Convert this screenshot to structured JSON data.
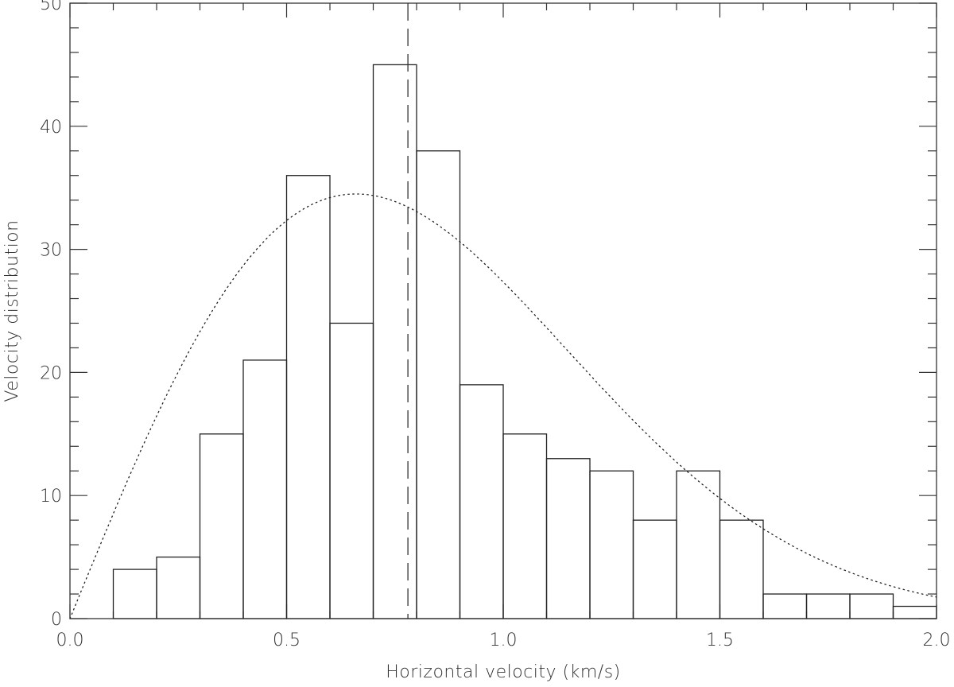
{
  "chart_data": {
    "type": "histogram",
    "xlabel": "Horizontal velocity (km/s)",
    "ylabel": "Velocity distribution",
    "xlim": [
      0.0,
      2.0
    ],
    "ylim": [
      0,
      50
    ],
    "x_ticks": [
      0.0,
      0.5,
      1.0,
      1.5,
      2.0
    ],
    "x_tick_labels": [
      "0.0",
      "0.5",
      "1.0",
      "1.5",
      "2.0"
    ],
    "y_ticks": [
      0,
      10,
      20,
      30,
      40,
      50
    ],
    "y_tick_labels": [
      "0",
      "10",
      "20",
      "30",
      "40",
      "50"
    ],
    "x_minor_step": 0.1,
    "y_minor_step": 2,
    "grid": false,
    "bin_width": 0.1,
    "bins": [
      {
        "x0": 0.1,
        "value": 4
      },
      {
        "x0": 0.2,
        "value": 5
      },
      {
        "x0": 0.3,
        "value": 15
      },
      {
        "x0": 0.4,
        "value": 21
      },
      {
        "x0": 0.5,
        "value": 36
      },
      {
        "x0": 0.6,
        "value": 24
      },
      {
        "x0": 0.7,
        "value": 45
      },
      {
        "x0": 0.8,
        "value": 38
      },
      {
        "x0": 0.9,
        "value": 19
      },
      {
        "x0": 1.0,
        "value": 15
      },
      {
        "x0": 1.1,
        "value": 13
      },
      {
        "x0": 1.2,
        "value": 12
      },
      {
        "x0": 1.3,
        "value": 8
      },
      {
        "x0": 1.4,
        "value": 12
      },
      {
        "x0": 1.5,
        "value": 8
      },
      {
        "x0": 1.6,
        "value": 2
      },
      {
        "x0": 1.7,
        "value": 2
      },
      {
        "x0": 1.8,
        "value": 2
      },
      {
        "x0": 1.9,
        "value": 1
      }
    ],
    "fit_curve": {
      "style": "dotted",
      "peak_x": 0.66,
      "peak_y": 34.5
    },
    "mean_line": {
      "style": "dashed",
      "x": 0.78
    }
  }
}
